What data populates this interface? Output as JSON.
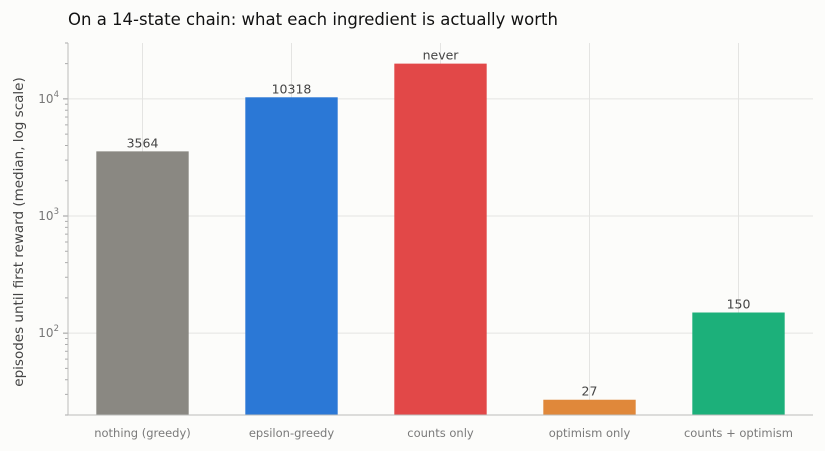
{
  "chart_data": {
    "type": "bar",
    "title": "On a 14-state chain: what each ingredient is actually worth",
    "xlabel": "",
    "ylabel": "episodes until first reward (median, log scale)",
    "yscale": "log",
    "ylim": [
      20,
      30000
    ],
    "yticks": [
      {
        "value": 100,
        "base": "10",
        "exp": "2"
      },
      {
        "value": 1000,
        "base": "10",
        "exp": "3"
      },
      {
        "value": 10000,
        "base": "10",
        "exp": "4"
      }
    ],
    "grid": true,
    "categories": [
      "nothing (greedy)",
      "epsilon-greedy",
      "counts only",
      "optimism only",
      "counts + optimism"
    ],
    "values": [
      3564,
      10318,
      20000,
      27,
      150
    ],
    "labels": [
      "3564",
      "10318",
      "never",
      "27",
      "150"
    ],
    "colors": [
      "#8a8882",
      "#2b78d6",
      "#e24848",
      "#e0883a",
      "#1cb07a"
    ]
  }
}
